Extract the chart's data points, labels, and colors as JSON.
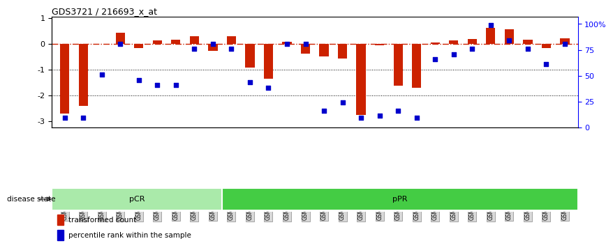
{
  "title": "GDS3721 / 216693_x_at",
  "samples": [
    "GSM559062",
    "GSM559063",
    "GSM559064",
    "GSM559065",
    "GSM559066",
    "GSM559067",
    "GSM559068",
    "GSM559069",
    "GSM559042",
    "GSM559043",
    "GSM559044",
    "GSM559045",
    "GSM559046",
    "GSM559047",
    "GSM559048",
    "GSM559049",
    "GSM559050",
    "GSM559051",
    "GSM559052",
    "GSM559053",
    "GSM559054",
    "GSM559055",
    "GSM559056",
    "GSM559057",
    "GSM559058",
    "GSM559059",
    "GSM559060",
    "GSM559061"
  ],
  "transformed_count": [
    -2.7,
    -2.4,
    0.0,
    0.42,
    -0.18,
    0.12,
    0.15,
    0.3,
    -0.28,
    0.28,
    -0.92,
    -1.35,
    0.08,
    -0.38,
    -0.48,
    -0.58,
    -2.75,
    -0.05,
    -1.62,
    -1.72,
    0.05,
    0.12,
    0.18,
    0.62,
    0.55,
    0.15,
    -0.18,
    0.22
  ],
  "percentile_rank": [
    3,
    3,
    45,
    75,
    40,
    35,
    35,
    70,
    75,
    70,
    38,
    32,
    75,
    75,
    10,
    18,
    3,
    5,
    10,
    3,
    60,
    65,
    70,
    93,
    78,
    70,
    55,
    75
  ],
  "pcr_count": 9,
  "ppr_count": 19,
  "pcr_color": "#aaeaaa",
  "ppr_color": "#44cc44",
  "bar_color": "#cc2200",
  "dot_color": "#0000cc",
  "yticks_left": [
    1,
    0,
    -1,
    -2,
    -3
  ],
  "yticks_right": [
    0,
    25,
    50,
    75,
    100
  ],
  "ylabel_right_labels": [
    "0",
    "25",
    "50",
    "75",
    "100%"
  ],
  "hline_color": "#cc2200",
  "dotted_lines": [
    -1,
    -2
  ],
  "legend_items": [
    "transformed count",
    "percentile rank within the sample"
  ],
  "legend_colors": [
    "#cc2200",
    "#0000cc"
  ],
  "disease_state_label": "disease state",
  "tick_bg_color": "#d8d8d8",
  "tick_edge_color": "#888888"
}
